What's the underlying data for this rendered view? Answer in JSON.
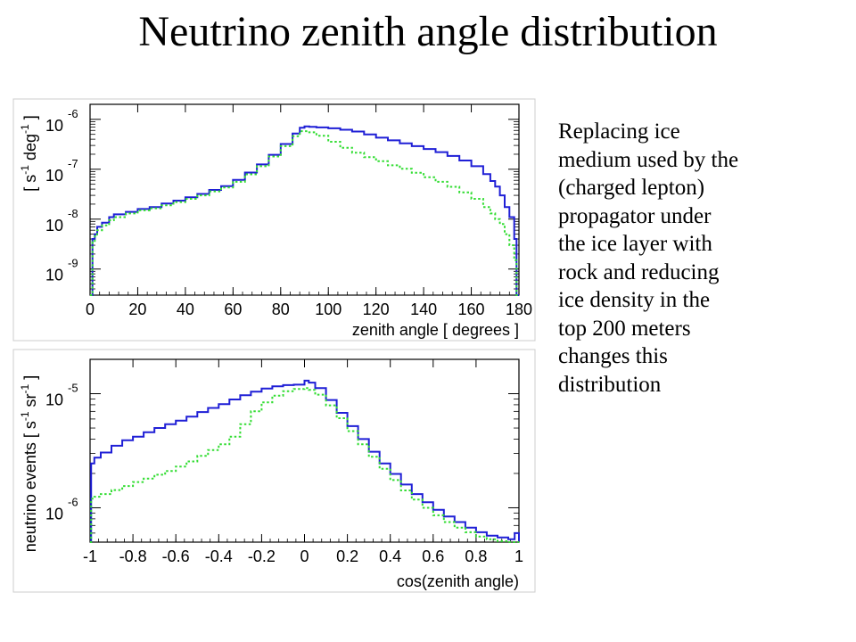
{
  "slide": {
    "title": "Neutrino zenith angle distribution",
    "caption_lines": [
      "Replacing ice",
      "medium used by the",
      "(charged lepton)",
      "propagator under",
      "the ice layer with",
      "rock and reducing",
      "ice density in the",
      "top 200 meters",
      "changes this",
      "distribution"
    ]
  },
  "colors": {
    "series_solid": "#1f1fd6",
    "series_dotted": "#33dd33",
    "frame": "#000000"
  },
  "chart_data": [
    {
      "type": "line",
      "step": true,
      "log_y": true,
      "xlabel": "zenith angle [ degrees ]",
      "ylabel_parts": [
        "[ s",
        "-1",
        " deg",
        "-1",
        " ]"
      ],
      "xlim": [
        0,
        180
      ],
      "ylim": [
        3e-10,
        2e-06
      ],
      "xticks": [
        "0",
        "20",
        "40",
        "60",
        "80",
        "100",
        "120",
        "140",
        "160",
        "180"
      ],
      "ytick_labels": [
        {
          "value": 1e-09,
          "base": "10",
          "exp": "-9"
        },
        {
          "value": 1e-08,
          "base": "10",
          "exp": "-8"
        },
        {
          "value": 1e-07,
          "base": "10",
          "exp": "-7"
        },
        {
          "value": 1e-06,
          "base": "10",
          "exp": "-6"
        }
      ],
      "x": [
        0,
        1,
        2,
        3,
        5,
        8,
        10,
        15,
        20,
        25,
        30,
        35,
        40,
        45,
        50,
        55,
        60,
        65,
        70,
        75,
        80,
        85,
        88,
        90,
        92,
        95,
        100,
        105,
        110,
        115,
        120,
        125,
        130,
        135,
        140,
        145,
        150,
        155,
        160,
        165,
        168,
        170,
        172,
        174,
        176,
        178,
        179,
        180
      ],
      "series": [
        {
          "style": "solid",
          "values": [
            3e-10,
            4e-09,
            5e-09,
            7e-09,
            8.5e-09,
            1.1e-08,
            1.25e-08,
            1.4e-08,
            1.6e-08,
            1.75e-08,
            2.05e-08,
            2.35e-08,
            2.75e-08,
            3.2e-08,
            3.85e-08,
            4.6e-08,
            6.1e-08,
            8.6e-08,
            1.25e-07,
            1.95e-07,
            3.2e-07,
            5.2e-07,
            6.8e-07,
            7.2e-07,
            7.1e-07,
            6.9e-07,
            6.6e-07,
            6.2e-07,
            5.7e-07,
            5e-07,
            4.3e-07,
            3.8e-07,
            3.3e-07,
            2.9e-07,
            2.55e-07,
            2.2e-07,
            1.85e-07,
            1.5e-07,
            1.15e-07,
            8e-08,
            5.8e-08,
            4.5e-08,
            3e-08,
            1.75e-08,
            1.1e-08,
            4e-09,
            3e-10,
            3e-10
          ]
        },
        {
          "style": "dotted",
          "values": [
            3e-10,
            3.5e-09,
            4.5e-09,
            6e-09,
            7.5e-09,
            9.5e-09,
            1.1e-08,
            1.3e-08,
            1.5e-08,
            1.65e-08,
            1.9e-08,
            2.2e-08,
            2.55e-08,
            3e-08,
            3.6e-08,
            4.3e-08,
            5.6e-08,
            7.9e-08,
            1.15e-07,
            1.8e-07,
            2.9e-07,
            4.6e-07,
            5.8e-07,
            5.8e-07,
            5.5e-07,
            4.7e-07,
            3.55e-07,
            2.7e-07,
            2.15e-07,
            1.75e-07,
            1.45e-07,
            1.2e-07,
            1.02e-07,
            8.5e-08,
            6.9e-08,
            5.6e-08,
            4.45e-08,
            3.45e-08,
            2.55e-08,
            1.75e-08,
            1.3e-08,
            1e-08,
            8e-09,
            5e-09,
            3e-09,
            1.5e-09,
            3e-10,
            3e-10
          ]
        }
      ]
    },
    {
      "type": "line",
      "step": true,
      "log_y": true,
      "xlabel": "cos(zenith angle)",
      "ylabel_parts": [
        "neutrino events [ s",
        "-1",
        " sr",
        "-1",
        " ]"
      ],
      "xlim": [
        -1,
        1
      ],
      "ylim": [
        5e-07,
        2e-05
      ],
      "xticks": [
        "-1",
        "-0.8",
        "-0.6",
        "-0.4",
        "-0.2",
        "0",
        "0.2",
        "0.4",
        "0.6",
        "0.8",
        "1"
      ],
      "ytick_labels": [
        {
          "value": 1e-06,
          "base": "10",
          "exp": "-6"
        },
        {
          "value": 1e-05,
          "base": "10",
          "exp": "-5"
        }
      ],
      "x": [
        -1,
        -0.995,
        -0.98,
        -0.95,
        -0.9,
        -0.85,
        -0.8,
        -0.75,
        -0.7,
        -0.65,
        -0.6,
        -0.55,
        -0.5,
        -0.45,
        -0.4,
        -0.35,
        -0.3,
        -0.25,
        -0.2,
        -0.15,
        -0.1,
        -0.05,
        0,
        0.02,
        0.05,
        0.1,
        0.15,
        0.2,
        0.25,
        0.3,
        0.35,
        0.4,
        0.45,
        0.5,
        0.55,
        0.6,
        0.65,
        0.7,
        0.75,
        0.8,
        0.85,
        0.9,
        0.95,
        0.98,
        1
      ],
      "series": [
        {
          "style": "solid",
          "values": [
            5e-07,
            2.45e-06,
            2.75e-06,
            3.05e-06,
            3.5e-06,
            3.9e-06,
            4.2e-06,
            4.6e-06,
            5e-06,
            5.4e-06,
            5.8e-06,
            6.3e-06,
            6.9e-06,
            7.5e-06,
            8.1e-06,
            8.9e-06,
            9.7e-06,
            1.04e-05,
            1.11e-05,
            1.16e-05,
            1.19e-05,
            1.2e-05,
            1.3e-05,
            1.25e-05,
            1.12e-05,
            8.8e-06,
            6.8e-06,
            5.2e-06,
            4e-06,
            3.1e-06,
            2.45e-06,
            1.98e-06,
            1.6e-06,
            1.32e-06,
            1.12e-06,
            9.6e-07,
            8.4e-07,
            7.5e-07,
            6.7e-07,
            6.1e-07,
            5.7e-07,
            5.5e-07,
            5.3e-07,
            6e-07,
            5.1e-07
          ]
        },
        {
          "style": "dotted",
          "values": [
            5e-07,
            1.2e-06,
            1.25e-06,
            1.32e-06,
            1.43e-06,
            1.55e-06,
            1.68e-06,
            1.8e-06,
            1.95e-06,
            2.1e-06,
            2.3e-06,
            2.55e-06,
            2.85e-06,
            3.2e-06,
            3.6e-06,
            4.2e-06,
            5.4e-06,
            7e-06,
            8.4e-06,
            9.6e-06,
            1.05e-05,
            1.1e-05,
            1.12e-05,
            1.08e-05,
            9.8e-06,
            7.9e-06,
            6.1e-06,
            4.7e-06,
            3.6e-06,
            2.8e-06,
            2.2e-06,
            1.75e-06,
            1.42e-06,
            1.18e-06,
            1e-06,
            8.6e-07,
            7.5e-07,
            6.7e-07,
            6.1e-07,
            5.6e-07,
            5.3e-07,
            5.1e-07,
            5e-07,
            5e-07,
            5e-07
          ]
        }
      ]
    }
  ]
}
